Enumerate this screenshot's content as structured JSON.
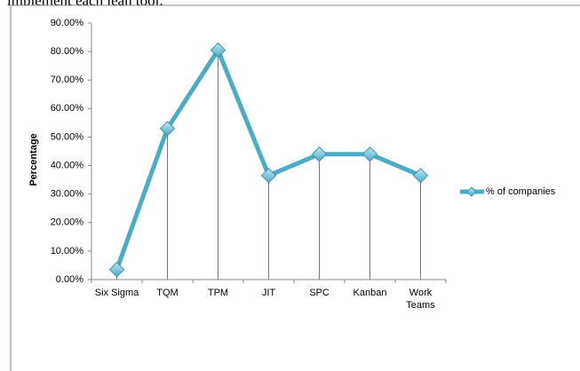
{
  "caption": "implement each lean tool.",
  "chart_data": {
    "type": "line",
    "y_label": "Percentage",
    "categories": [
      "Six Sigma",
      "TQM",
      "TPM",
      "JIT",
      "SPC",
      "Kanban",
      "Work Teams"
    ],
    "series": [
      {
        "name": "% of companies",
        "color": "#4bacc6",
        "values": [
          3.5,
          53,
          80.5,
          36.5,
          44,
          44,
          36.5
        ]
      }
    ],
    "ylim": [
      0,
      90
    ],
    "yticks": [
      {
        "value": 0,
        "label": "0.00%"
      },
      {
        "value": 10,
        "label": "10.00%"
      },
      {
        "value": 20,
        "label": "20.00%"
      },
      {
        "value": 30,
        "label": "30.00%"
      },
      {
        "value": 40,
        "label": "40.00%"
      },
      {
        "value": 50,
        "label": "50.00%"
      },
      {
        "value": 60,
        "label": "60.00%"
      },
      {
        "value": 70,
        "label": "70.00%"
      },
      {
        "value": 80,
        "label": "80.00%"
      },
      {
        "value": 90,
        "label": "90.00%"
      }
    ],
    "grid": false,
    "drop_lines": true,
    "legend": "right"
  }
}
